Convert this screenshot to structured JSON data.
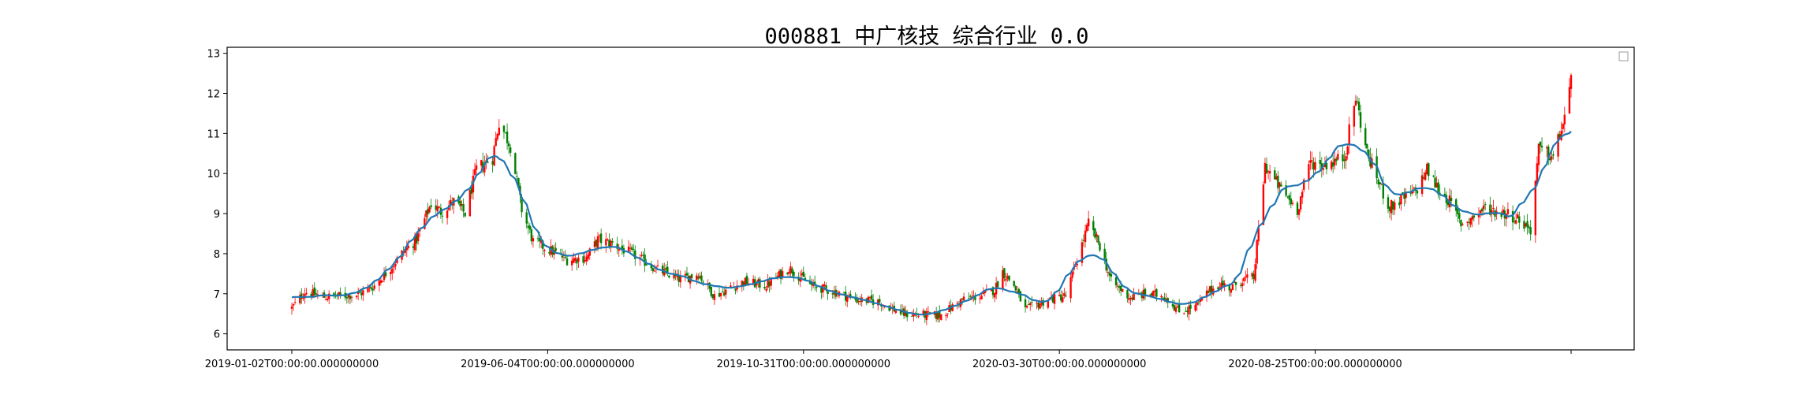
{
  "chart_data": {
    "type": "candlestick",
    "title": "000881 中广核技 综合行业 0.0",
    "xlabel": "",
    "ylabel": "",
    "ylim": [
      5.6,
      13.15
    ],
    "yticks": [
      6,
      7,
      8,
      9,
      10,
      11,
      12,
      13
    ],
    "x_tick_labels": [
      "2019-01-02T00:00:00.000000000",
      "2019-06-04T00:00:00.000000000",
      "2019-10-31T00:00:00.000000000",
      "2020-03-30T00:00:00.000000000",
      "2020-08-25T00:00:00.000000000",
      ""
    ],
    "grid": false,
    "legend": "top-right",
    "colors": {
      "up": "#ff0000",
      "down": "#008000",
      "ma": "#1f77b4"
    },
    "close_path": [
      [
        "2019-01-02",
        6.65
      ],
      [
        "2019-01-10",
        7.05
      ],
      [
        "2019-01-22",
        6.92
      ],
      [
        "2019-02-12",
        6.98
      ],
      [
        "2019-02-22",
        7.2
      ],
      [
        "2019-03-04",
        7.65
      ],
      [
        "2019-03-12",
        8.05
      ],
      [
        "2019-03-20",
        8.35
      ],
      [
        "2019-03-29",
        9.25
      ],
      [
        "2019-04-04",
        9.05
      ],
      [
        "2019-04-12",
        9.3
      ],
      [
        "2019-04-19",
        9.0
      ],
      [
        "2019-04-26",
        10.1
      ],
      [
        "2019-05-06",
        10.4
      ],
      [
        "2019-05-10",
        11.3
      ],
      [
        "2019-05-17",
        10.7
      ],
      [
        "2019-05-24",
        9.1
      ],
      [
        "2019-05-31",
        8.3
      ],
      [
        "2019-06-10",
        8.1
      ],
      [
        "2019-06-21",
        7.85
      ],
      [
        "2019-07-03",
        7.9
      ],
      [
        "2019-07-10",
        8.35
      ],
      [
        "2019-07-19",
        8.25
      ],
      [
        "2019-08-02",
        7.95
      ],
      [
        "2019-08-16",
        7.6
      ],
      [
        "2019-08-30",
        7.35
      ],
      [
        "2019-09-10",
        7.5
      ],
      [
        "2019-09-20",
        6.95
      ],
      [
        "2019-10-08",
        7.3
      ],
      [
        "2019-10-22",
        7.2
      ],
      [
        "2019-11-05",
        7.65
      ],
      [
        "2019-11-19",
        7.2
      ],
      [
        "2019-12-03",
        7.05
      ],
      [
        "2019-12-17",
        6.85
      ],
      [
        "2019-12-31",
        6.8
      ],
      [
        "2020-01-14",
        6.5
      ],
      [
        "2020-02-06",
        6.45
      ],
      [
        "2020-02-20",
        6.85
      ],
      [
        "2020-03-03",
        6.95
      ],
      [
        "2020-03-11",
        7.1
      ],
      [
        "2020-03-16",
        7.55
      ],
      [
        "2020-03-23",
        7.2
      ],
      [
        "2020-03-30",
        6.6
      ],
      [
        "2020-04-13",
        6.85
      ],
      [
        "2020-04-24",
        6.95
      ],
      [
        "2020-05-08",
        8.75
      ],
      [
        "2020-05-15",
        8.2
      ],
      [
        "2020-05-22",
        7.3
      ],
      [
        "2020-06-03",
        6.9
      ],
      [
        "2020-06-12",
        7.0
      ],
      [
        "2020-06-24",
        6.95
      ],
      [
        "2020-07-03",
        6.55
      ],
      [
        "2020-07-14",
        6.7
      ],
      [
        "2020-07-21",
        7.05
      ],
      [
        "2020-07-28",
        7.25
      ],
      [
        "2020-08-04",
        7.15
      ],
      [
        "2020-08-11",
        7.35
      ],
      [
        "2020-08-18",
        7.4
      ],
      [
        "2020-08-25",
        10.2
      ],
      [
        "2020-09-03",
        9.65
      ],
      [
        "2020-09-14",
        9.1
      ],
      [
        "2020-09-22",
        10.3
      ],
      [
        "2020-09-29",
        10.2
      ],
      [
        "2020-10-13",
        10.4
      ],
      [
        "2020-10-20",
        11.9
      ],
      [
        "2020-10-27",
        10.5
      ],
      [
        "2020-11-03",
        9.8
      ],
      [
        "2020-11-10",
        9.15
      ],
      [
        "2020-11-17",
        9.35
      ],
      [
        "2020-11-26",
        9.55
      ],
      [
        "2020-12-03",
        10.1
      ],
      [
        "2020-12-10",
        9.6
      ],
      [
        "2020-12-17",
        9.3
      ],
      [
        "2020-12-24",
        8.75
      ],
      [
        "2020-12-31",
        8.9
      ],
      [
        "2021-01-08",
        9.15
      ],
      [
        "2021-01-15",
        9.05
      ],
      [
        "2021-01-22",
        9.0
      ],
      [
        "2021-01-29",
        8.85
      ],
      [
        "2021-02-05",
        8.6
      ],
      [
        "2021-02-10",
        10.6
      ],
      [
        "2021-02-19",
        10.4
      ],
      [
        "2021-02-26",
        11.4
      ],
      [
        "2021-03-02",
        12.25
      ]
    ]
  }
}
